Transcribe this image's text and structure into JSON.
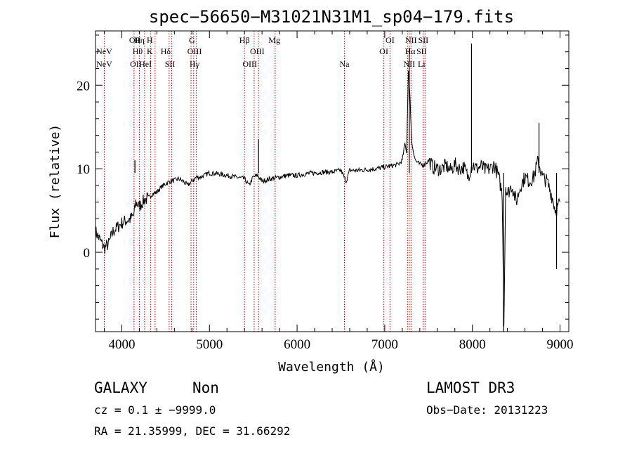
{
  "chart_data": {
    "type": "line",
    "title": "spec−56650−M31021N31M1_sp04−179.fits",
    "xlabel": "Wavelength (Å)",
    "ylabel": "Flux (relative)",
    "xlim": [
      3700,
      9100
    ],
    "ylim": [
      -9.5,
      26.5
    ],
    "xticks": [
      4000,
      5000,
      6000,
      7000,
      8000,
      9000
    ],
    "yticks": [
      0,
      10,
      20
    ],
    "line_color": "#000000",
    "marker_color": "#cc0000",
    "series": [
      {
        "name": "flux",
        "x": [
          3700,
          3750,
          3800,
          3850,
          3900,
          3950,
          4000,
          4050,
          4100,
          4140,
          4160,
          4200,
          4250,
          4300,
          4350,
          4400,
          4450,
          4500,
          4550,
          4600,
          4650,
          4700,
          4750,
          4800,
          4850,
          4900,
          5000,
          5100,
          5200,
          5300,
          5400,
          5450,
          5500,
          5550,
          5600,
          5700,
          5800,
          5900,
          6000,
          6100,
          6200,
          6300,
          6400,
          6500,
          6560,
          6600,
          6700,
          6800,
          6900,
          7000,
          7100,
          7150,
          7200,
          7230,
          7250,
          7270,
          7290,
          7310,
          7350,
          7400,
          7450,
          7500,
          7550,
          7600,
          7650,
          7700,
          7750,
          7800,
          7850,
          7900,
          7950,
          8000,
          8050,
          8100,
          8150,
          8200,
          8250,
          8300,
          8340,
          8360,
          8380,
          8400,
          8450,
          8500,
          8550,
          8600,
          8650,
          8700,
          8750,
          8800,
          8850,
          8900,
          8950,
          9000
        ],
        "y": [
          2.5,
          1.5,
          0.5,
          1.0,
          2.5,
          3.0,
          3.5,
          3.8,
          4.0,
          4.5,
          6.0,
          5.5,
          6.2,
          6.5,
          7.0,
          7.2,
          7.8,
          8.2,
          8.5,
          8.6,
          8.8,
          8.5,
          8.0,
          8.5,
          9.0,
          9.0,
          9.5,
          9.4,
          9.2,
          9.0,
          8.8,
          8.0,
          9.0,
          9.2,
          8.5,
          8.8,
          9.0,
          9.2,
          9.2,
          9.4,
          9.5,
          9.6,
          9.6,
          9.8,
          8.5,
          9.8,
          9.8,
          9.9,
          10.0,
          10.2,
          10.4,
          10.5,
          11.0,
          13.0,
          12.0,
          22.0,
          18.0,
          13.0,
          11.0,
          10.5,
          10.5,
          11.0,
          10.2,
          10.0,
          10.0,
          10.4,
          9.8,
          10.5,
          10.0,
          10.2,
          9.0,
          10.6,
          10.0,
          10.3,
          9.8,
          10.0,
          10.5,
          9.0,
          7.0,
          -8.5,
          8.0,
          7.0,
          8.0,
          6.0,
          8.0,
          9.0,
          8.5,
          9.0,
          11.0,
          9.0,
          8.5,
          7.0,
          5.0,
          6.0
        ]
      }
    ],
    "spikes": [
      {
        "x": 4150,
        "y": 11.0
      },
      {
        "x": 5560,
        "y": 13.5
      },
      {
        "x": 7280,
        "y": 24.5
      },
      {
        "x": 7990,
        "y": 25.0
      },
      {
        "x": 8355,
        "y": -9.5
      },
      {
        "x": 8760,
        "y": 15.5
      },
      {
        "x": 8960,
        "y": -2.0
      }
    ],
    "annotations": [
      {
        "label": "NeV",
        "wavelength": 3426,
        "row": 2,
        "show": false
      },
      {
        "label": "NeV",
        "wavelength": 3800,
        "row": 1
      },
      {
        "label": "NeV",
        "wavelength": 3800,
        "row": 2
      },
      {
        "label": "OII",
        "wavelength": 4150,
        "row": 0
      },
      {
        "label": "Hη",
        "wavelength": 4200,
        "row": 0
      },
      {
        "label": "H",
        "wavelength": 4320,
        "row": 0
      },
      {
        "label": "Hθ",
        "wavelength": 4180,
        "row": 1
      },
      {
        "label": "K",
        "wavelength": 4320,
        "row": 1
      },
      {
        "label": "Hδ",
        "wavelength": 4500,
        "row": 1
      },
      {
        "label": "OII",
        "wavelength": 4160,
        "row": 2
      },
      {
        "label": "HeI",
        "wavelength": 4270,
        "row": 2
      },
      {
        "label": "SII",
        "wavelength": 4550,
        "row": 2
      },
      {
        "label": "G",
        "wavelength": 4800,
        "row": 0
      },
      {
        "label": "OIII",
        "wavelength": 4830,
        "row": 1
      },
      {
        "label": "Hγ",
        "wavelength": 4830,
        "row": 2
      },
      {
        "label": "Hβ",
        "wavelength": 5400,
        "row": 0
      },
      {
        "label": "OIII",
        "wavelength": 5545,
        "row": 1
      },
      {
        "label": "OIII",
        "wavelength": 5460,
        "row": 2
      },
      {
        "label": "Mg",
        "wavelength": 5740,
        "row": 0
      },
      {
        "label": "Na",
        "wavelength": 6540,
        "row": 2
      },
      {
        "label": "OI",
        "wavelength": 7060,
        "row": 0
      },
      {
        "label": "OI",
        "wavelength": 6990,
        "row": 1
      },
      {
        "label": "NII",
        "wavelength": 7300,
        "row": 0
      },
      {
        "label": "SII",
        "wavelength": 7440,
        "row": 0
      },
      {
        "label": "Hα",
        "wavelength": 7290,
        "row": 1
      },
      {
        "label": "SII",
        "wavelength": 7420,
        "row": 1
      },
      {
        "label": "NII",
        "wavelength": 7280,
        "row": 2
      },
      {
        "label": "Li",
        "wavelength": 7420,
        "row": 2
      }
    ],
    "line_markers": [
      3800,
      4140,
      4200,
      4260,
      4330,
      4380,
      4540,
      4570,
      4790,
      4820,
      4850,
      5400,
      5510,
      5560,
      5750,
      6540,
      6990,
      7060,
      7260,
      7280,
      7300,
      7440,
      7460
    ]
  },
  "footer": {
    "object_class": "GALAXY",
    "subclass": "Non",
    "survey": "LAMOST DR3",
    "redshift_line": "cz = 0.1 ± −9999.0",
    "obs_date_line": "Obs−Date: 20131223",
    "coords_line": "RA =  21.35999, DEC =  31.66292"
  }
}
